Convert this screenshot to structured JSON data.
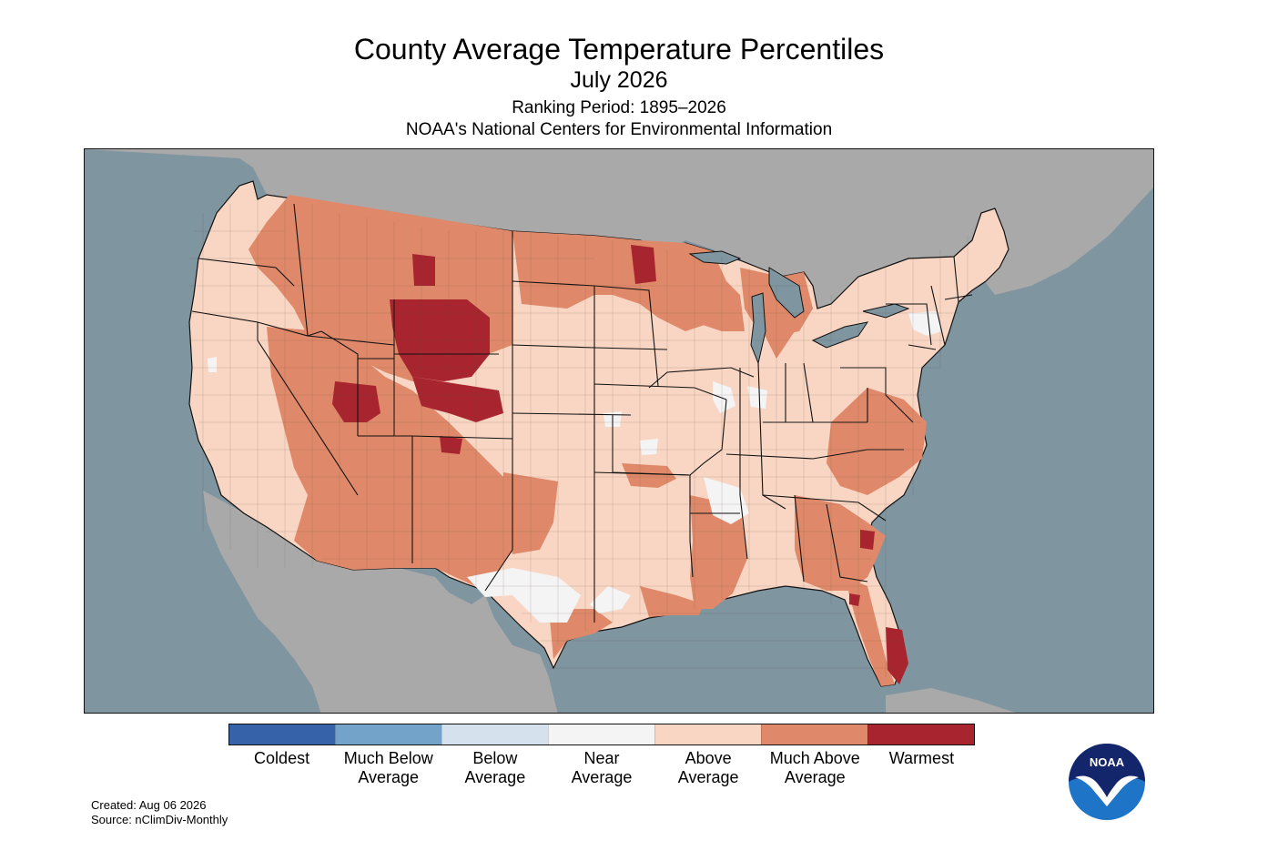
{
  "header": {
    "title": "County Average Temperature Percentiles",
    "period": "July 2026",
    "ranking": "Ranking Period: 1895–2026",
    "source_org": "NOAA's National Centers for Environmental Information"
  },
  "map": {
    "colors": {
      "ocean": "#7f959f",
      "land_outside": "#a9a9a9",
      "county_border": "#5a4a44",
      "state_border": "#111111"
    }
  },
  "legend": {
    "categories": [
      {
        "line1": "Coldest",
        "line2": "",
        "color": "#3562a8"
      },
      {
        "line1": "Much Below",
        "line2": "Average",
        "color": "#74a3ca"
      },
      {
        "line1": "Below",
        "line2": "Average",
        "color": "#d5e2ee"
      },
      {
        "line1": "Near",
        "line2": "Average",
        "color": "#f4f4f4"
      },
      {
        "line1": "Above",
        "line2": "Average",
        "color": "#f8d6c3"
      },
      {
        "line1": "Much Above",
        "line2": "Average",
        "color": "#e0896a"
      },
      {
        "line1": "Warmest",
        "line2": "",
        "color": "#a8252f"
      }
    ]
  },
  "footer": {
    "created": "Created: Aug 06 2026",
    "source": "Source: nClimDiv-Monthly"
  },
  "logo": {
    "text": "NOAA",
    "icon": "noaa-logo-icon"
  }
}
